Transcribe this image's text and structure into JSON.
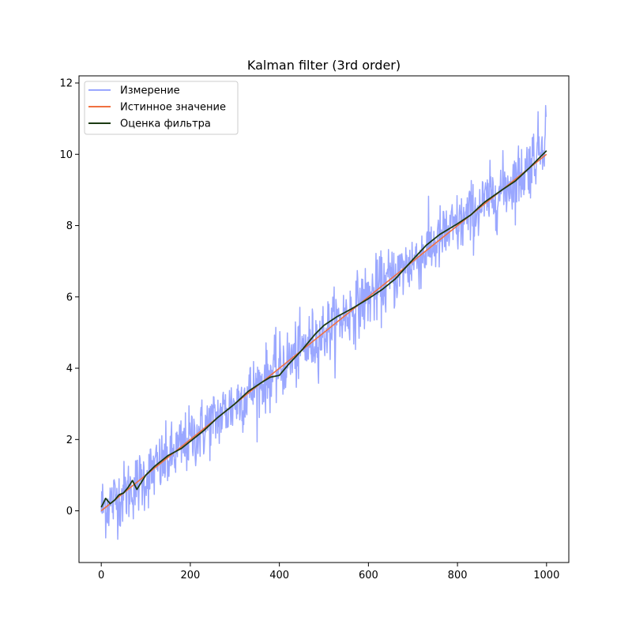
{
  "chart_data": {
    "type": "line",
    "title": "Kalman filter (3rd order)",
    "xlabel": "",
    "ylabel": "",
    "xlim": [
      -50,
      1050
    ],
    "ylim": [
      -1.45,
      12.2
    ],
    "x_ticks": [
      0,
      200,
      400,
      600,
      800,
      1000
    ],
    "y_ticks": [
      0,
      2,
      4,
      6,
      8,
      10,
      12
    ],
    "grid": false,
    "legend_position": "top-left",
    "n_points": 1000,
    "series": [
      {
        "name": "Измерение",
        "color": "#9aa7ff",
        "description_points": {
          "x": [
            0,
            30,
            60,
            100,
            150,
            200,
            250,
            300,
            350,
            400,
            450,
            500,
            550,
            600,
            650,
            700,
            750,
            800,
            850,
            900,
            950,
            990,
            1000
          ],
          "y": [
            0.1,
            0.3,
            0.55,
            0.95,
            1.45,
            2.0,
            2.5,
            3.0,
            3.5,
            4.0,
            4.5,
            5.0,
            5.5,
            6.0,
            6.5,
            7.0,
            7.5,
            8.0,
            8.5,
            9.0,
            9.5,
            10.3,
            10.9
          ]
        },
        "noise_std": 0.45,
        "y_min_observed": -0.8,
        "y_max_observed": 11.5
      },
      {
        "name": "Истинное значение",
        "color": "#f07040",
        "x": [
          0,
          1000
        ],
        "y": [
          0.0,
          10.0
        ]
      },
      {
        "name": "Оценка фильтра",
        "color": "#1b3a12",
        "x": [
          0,
          10,
          20,
          30,
          40,
          50,
          60,
          70,
          80,
          90,
          100,
          120,
          150,
          180,
          200,
          230,
          260,
          300,
          330,
          360,
          380,
          400,
          420,
          450,
          480,
          500,
          530,
          560,
          600,
          630,
          660,
          700,
          730,
          760,
          800,
          830,
          860,
          900,
          930,
          960,
          980,
          1000
        ],
        "y": [
          0.1,
          0.35,
          0.2,
          0.3,
          0.45,
          0.5,
          0.65,
          0.85,
          0.6,
          0.8,
          1.0,
          1.25,
          1.55,
          1.75,
          1.95,
          2.25,
          2.6,
          3.0,
          3.35,
          3.6,
          3.75,
          3.8,
          4.1,
          4.5,
          4.95,
          5.2,
          5.45,
          5.65,
          5.95,
          6.2,
          6.5,
          7.05,
          7.45,
          7.75,
          8.05,
          8.3,
          8.65,
          9.0,
          9.25,
          9.6,
          9.85,
          10.1
        ]
      }
    ]
  }
}
